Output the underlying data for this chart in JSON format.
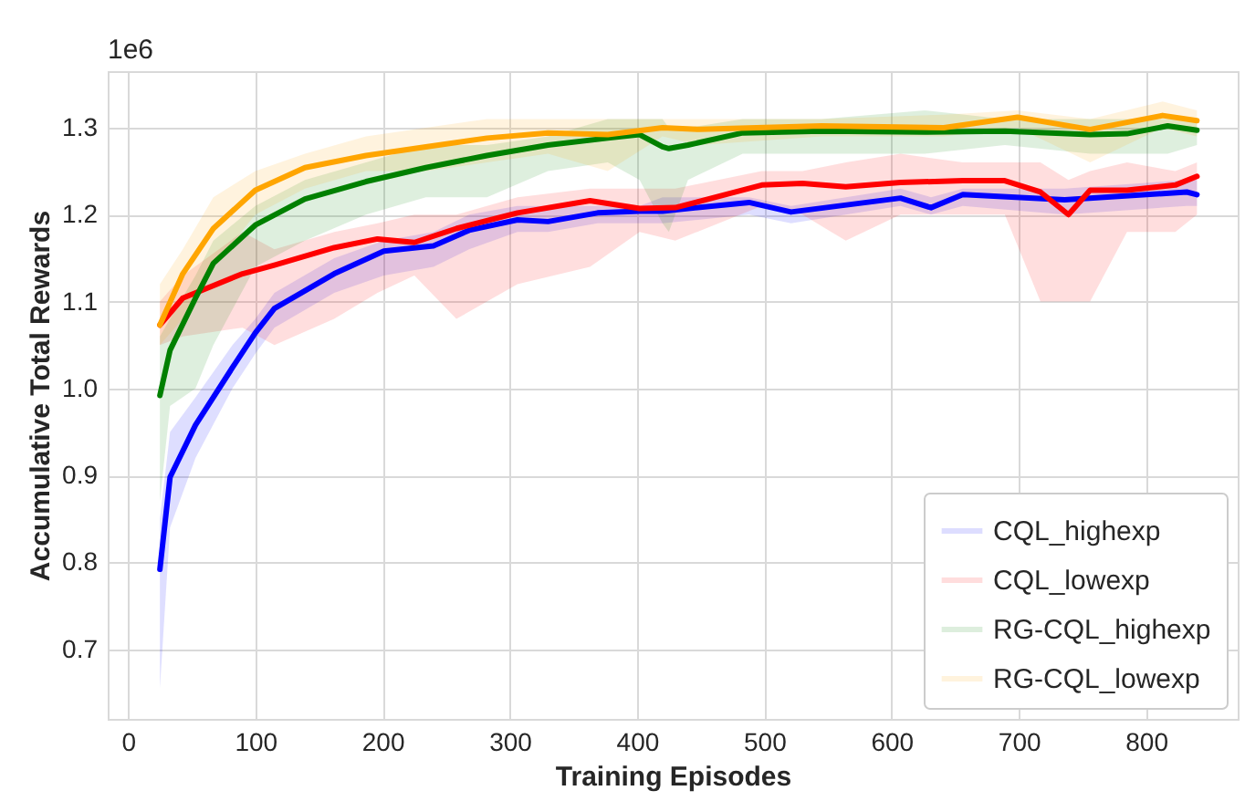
{
  "chart_data": {
    "type": "line",
    "xlabel": "Training Episodes",
    "ylabel": "Accumulative Total Rewards",
    "annotations": [
      "1e6"
    ],
    "xlim": [
      -16,
      872
    ],
    "xticks": [
      0,
      100,
      200,
      300,
      400,
      500,
      600,
      700,
      800
    ],
    "ylim": [
      0.62,
      1.365
    ],
    "yticks": [
      0.7,
      0.8,
      0.9,
      {
        "value": 1,
        "label": "1.0"
      },
      1.1,
      1.2,
      1.3
    ],
    "grid": true,
    "legend": "bottom right",
    "line_style": "solid",
    "marker": "none",
    "series": [
      {
        "name": "CQL_highexp",
        "color": "#0000ff",
        "x": [
          25,
          33,
          53,
          82,
          100,
          115,
          162,
          201,
          240,
          268,
          306,
          330,
          369,
          402,
          420,
          488,
          521,
          607,
          631,
          656,
          736,
          832,
          840
        ],
        "values": [
          0.792,
          0.898,
          0.958,
          1.024,
          1.064,
          1.092,
          1.132,
          1.158,
          1.164,
          1.182,
          1.194,
          1.192,
          1.202,
          1.204,
          1.204,
          1.214,
          1.203,
          1.219,
          1.208,
          1.223,
          1.217,
          1.226,
          1.223
        ],
        "lower": [
          0.655,
          0.84,
          0.92,
          1.0,
          1.04,
          1.07,
          1.11,
          1.13,
          1.14,
          1.16,
          1.18,
          1.18,
          1.19,
          1.19,
          1.19,
          1.2,
          1.19,
          1.21,
          1.2,
          1.21,
          1.2,
          1.21,
          1.21
        ],
        "upper": [
          0.85,
          0.95,
          0.99,
          1.05,
          1.08,
          1.11,
          1.15,
          1.17,
          1.18,
          1.2,
          1.21,
          1.21,
          1.21,
          1.21,
          1.22,
          1.22,
          1.21,
          1.23,
          1.22,
          1.23,
          1.23,
          1.24,
          1.24
        ]
      },
      {
        "name": "CQL_lowexp",
        "color": "#ff0000",
        "x": [
          25,
          43,
          90,
          115,
          162,
          196,
          225,
          258,
          306,
          363,
          402,
          430,
          498,
          530,
          564,
          607,
          656,
          689,
          717,
          739,
          756,
          785,
          823,
          840
        ],
        "values": [
          1.073,
          1.104,
          1.132,
          1.142,
          1.162,
          1.172,
          1.168,
          1.184,
          1.202,
          1.216,
          1.207,
          1.208,
          1.234,
          1.236,
          1.232,
          1.237,
          1.239,
          1.239,
          1.226,
          1.2,
          1.228,
          1.228,
          1.234,
          1.244
        ],
        "lower": [
          1.05,
          1.06,
          1.07,
          1.05,
          1.08,
          1.11,
          1.13,
          1.08,
          1.12,
          1.14,
          1.18,
          1.17,
          1.21,
          1.2,
          1.17,
          1.2,
          1.2,
          1.2,
          1.1,
          1.1,
          1.1,
          1.18,
          1.18,
          1.2
        ],
        "upper": [
          1.1,
          1.13,
          1.18,
          1.16,
          1.18,
          1.19,
          1.2,
          1.2,
          1.22,
          1.23,
          1.23,
          1.23,
          1.25,
          1.25,
          1.26,
          1.27,
          1.26,
          1.26,
          1.26,
          1.24,
          1.25,
          1.26,
          1.25,
          1.26
        ]
      },
      {
        "name": "RG-CQL_highexp",
        "color": "#008000",
        "x": [
          25,
          33,
          53,
          67,
          100,
          139,
          187,
          234,
          282,
          330,
          377,
          402,
          420,
          425,
          440,
          483,
          545,
          626,
          689,
          756,
          785,
          817,
          840
        ],
        "values": [
          0.992,
          1.044,
          1.104,
          1.144,
          1.188,
          1.218,
          1.238,
          1.254,
          1.268,
          1.28,
          1.288,
          1.292,
          1.278,
          1.276,
          1.28,
          1.294,
          1.296,
          1.295,
          1.296,
          1.292,
          1.293,
          1.302,
          1.297
        ],
        "lower": [
          0.87,
          0.98,
          1.0,
          1.05,
          1.14,
          1.17,
          1.2,
          1.22,
          1.22,
          1.25,
          1.26,
          1.24,
          1.19,
          1.18,
          1.24,
          1.27,
          1.27,
          1.27,
          1.28,
          1.27,
          1.27,
          1.27,
          1.28
        ],
        "upper": [
          1.06,
          1.08,
          1.13,
          1.17,
          1.21,
          1.24,
          1.26,
          1.28,
          1.28,
          1.29,
          1.31,
          1.31,
          1.31,
          1.3,
          1.3,
          1.31,
          1.31,
          1.32,
          1.31,
          1.31,
          1.31,
          1.31,
          1.31
        ]
      },
      {
        "name": "RG-CQL_lowexp",
        "color": "#ffa500",
        "x": [
          25,
          43,
          67,
          100,
          139,
          187,
          234,
          282,
          330,
          377,
          420,
          449,
          545,
          641,
          699,
          756,
          813,
          840
        ],
        "values": [
          1.073,
          1.132,
          1.184,
          1.228,
          1.254,
          1.268,
          1.278,
          1.288,
          1.294,
          1.292,
          1.3,
          1.298,
          1.302,
          1.3,
          1.312,
          1.298,
          1.314,
          1.308
        ],
        "lower": [
          1.05,
          1.08,
          1.14,
          1.2,
          1.23,
          1.25,
          1.25,
          1.26,
          1.27,
          1.25,
          1.29,
          1.28,
          1.29,
          1.29,
          1.3,
          1.26,
          1.3,
          1.29
        ],
        "upper": [
          1.12,
          1.16,
          1.22,
          1.25,
          1.27,
          1.29,
          1.3,
          1.31,
          1.31,
          1.31,
          1.31,
          1.31,
          1.31,
          1.315,
          1.32,
          1.31,
          1.33,
          1.32
        ]
      }
    ]
  }
}
